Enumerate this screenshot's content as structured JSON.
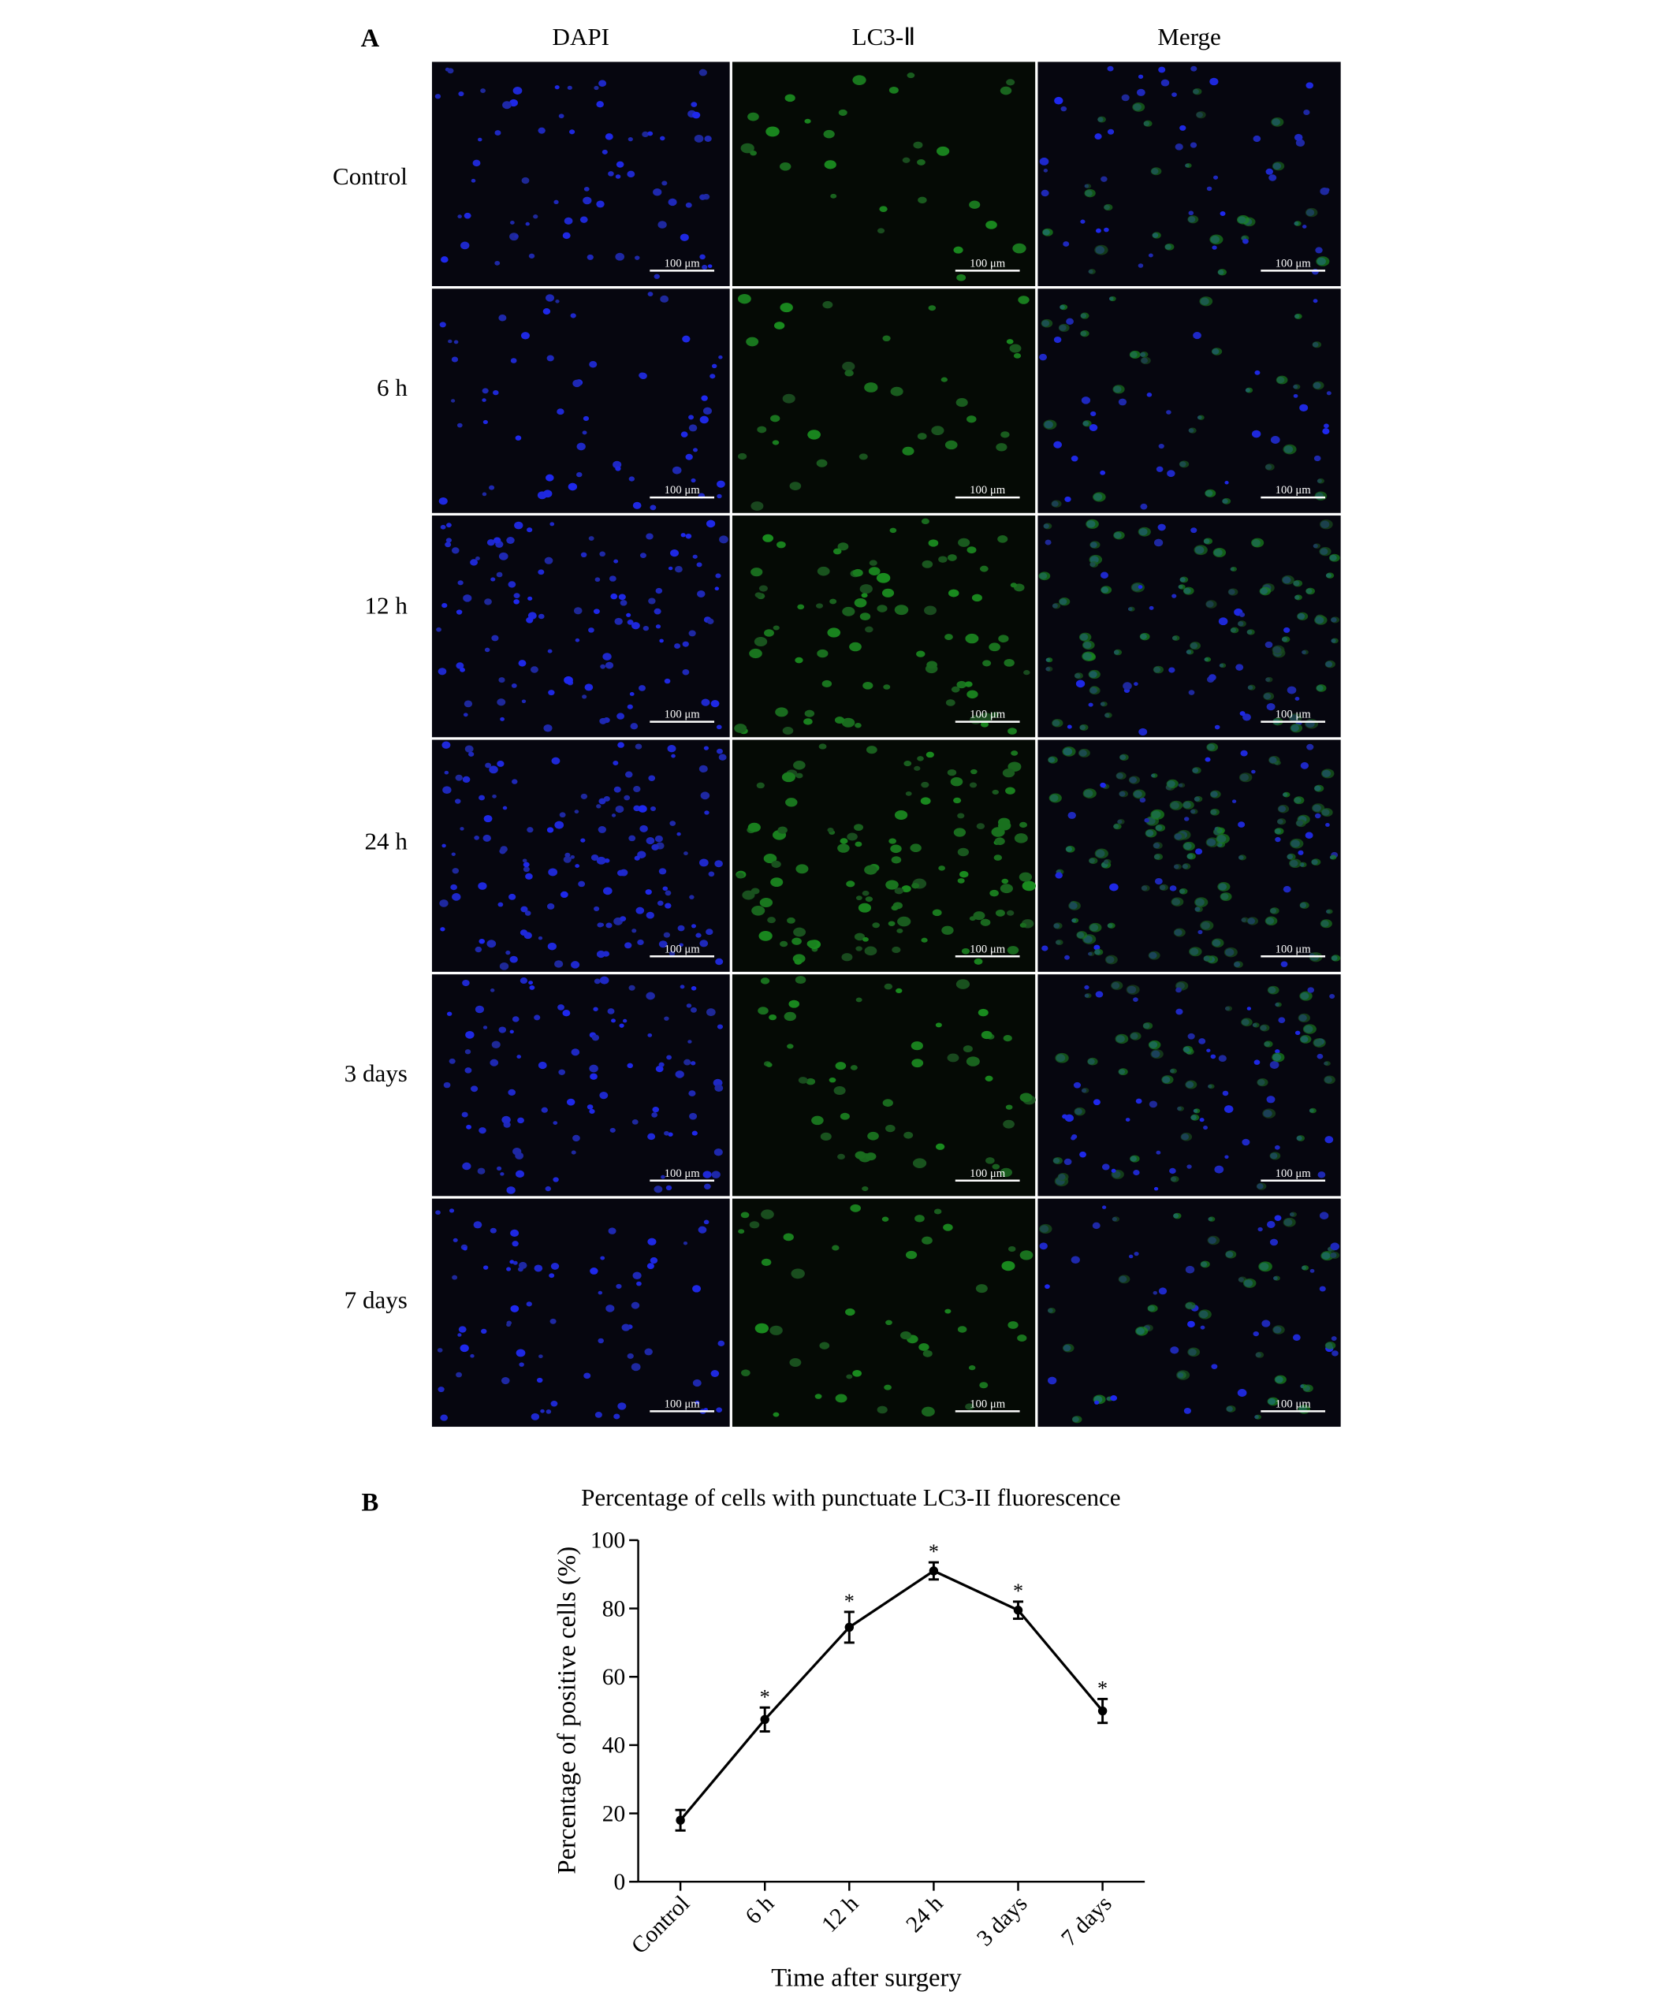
{
  "panel_a": {
    "label": "A",
    "columns": [
      "DAPI",
      "LC3-Ⅱ",
      "Merge"
    ],
    "rows": [
      "Control",
      "6 h",
      "12 h",
      "24 h",
      "3 days",
      "7 days"
    ],
    "scale_bar": "100 μm"
  },
  "chart_data": {
    "type": "line",
    "panel_label": "B",
    "title": "Percentage of cells with punctuate LC3-II fluorescence",
    "x_label": "Time after surgery",
    "y_label": "Percentage of positive cells (%)",
    "categories": [
      "Control",
      "6 h",
      "12 h",
      "24 h",
      "3 days",
      "7 days"
    ],
    "values": [
      18,
      47.5,
      74.5,
      91,
      79.5,
      50
    ],
    "errors": [
      3,
      3.5,
      4.5,
      2.5,
      2.5,
      3.5
    ],
    "annotations": [
      null,
      "*",
      "*",
      "*",
      "*",
      "*"
    ],
    "color": "#000000",
    "ylim": [
      0,
      100
    ],
    "yticks": [
      0,
      20,
      40,
      60,
      80,
      100
    ]
  }
}
